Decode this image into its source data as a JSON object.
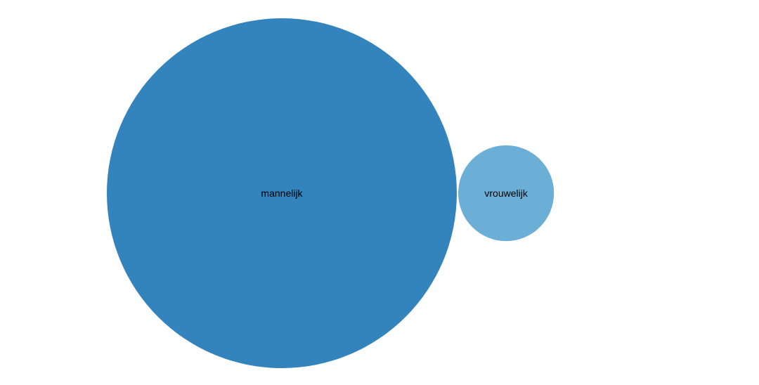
{
  "chart_data": {
    "type": "bubble",
    "items": [
      {
        "label": "mannelijk",
        "value": 13.36,
        "color": "#3383bd"
      },
      {
        "label": "vrouwelijk",
        "value": 1,
        "color": "#6baed6"
      }
    ]
  }
}
